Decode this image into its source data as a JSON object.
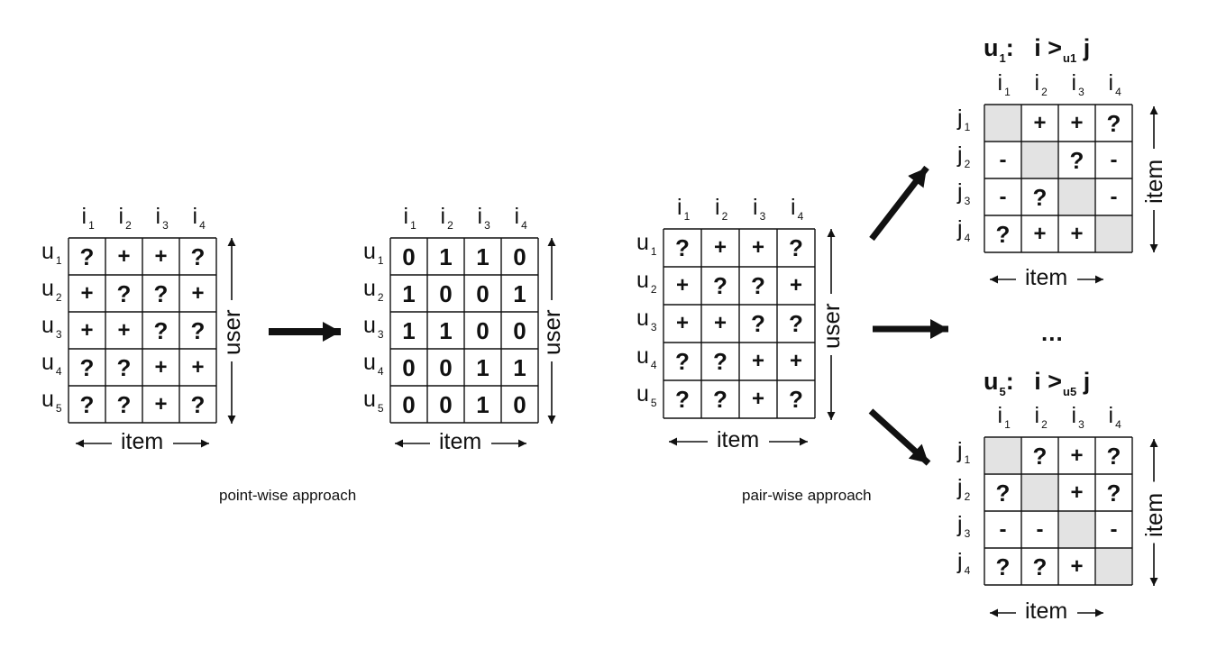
{
  "labels": {
    "item_axis": "item",
    "user_axis": "user",
    "point_wise": "point-wise approach",
    "pair_wise": "pair-wise approach",
    "ellipsis": "...",
    "row_prefix_user": "u",
    "col_prefix_item": "i",
    "row_prefix_item": "j",
    "rel_u1": {
      "user": "u",
      "user_sub": "1",
      "i": "i",
      "gt": ">",
      "gt_sub": "u1",
      "j": "j"
    },
    "rel_u5": {
      "user": "u",
      "user_sub": "5",
      "i": "i",
      "gt": ">",
      "gt_sub": "u5",
      "j": "j"
    }
  },
  "colors": {
    "shaded_cell": "#e3e3e3",
    "line": "#111111"
  },
  "matrices": {
    "user_item_observed": {
      "cols": [
        "1",
        "2",
        "3",
        "4"
      ],
      "rows": [
        "1",
        "2",
        "3",
        "4",
        "5"
      ],
      "cells": [
        [
          "?",
          "+",
          "+",
          "?"
        ],
        [
          "+",
          "?",
          "?",
          "+"
        ],
        [
          "+",
          "+",
          "?",
          "?"
        ],
        [
          "?",
          "?",
          "+",
          "+"
        ],
        [
          "?",
          "?",
          "+",
          "?"
        ]
      ]
    },
    "user_item_binary": {
      "cols": [
        "1",
        "2",
        "3",
        "4"
      ],
      "rows": [
        "1",
        "2",
        "3",
        "4",
        "5"
      ],
      "cells": [
        [
          "0",
          "1",
          "1",
          "0"
        ],
        [
          "1",
          "0",
          "0",
          "1"
        ],
        [
          "1",
          "1",
          "0",
          "0"
        ],
        [
          "0",
          "0",
          "1",
          "1"
        ],
        [
          "0",
          "0",
          "1",
          "0"
        ]
      ]
    },
    "user_item_pairwise_source": {
      "cols": [
        "1",
        "2",
        "3",
        "4"
      ],
      "rows": [
        "1",
        "2",
        "3",
        "4",
        "5"
      ],
      "cells": [
        [
          "?",
          "+",
          "+",
          "?"
        ],
        [
          "+",
          "?",
          "?",
          "+"
        ],
        [
          "+",
          "+",
          "?",
          "?"
        ],
        [
          "?",
          "?",
          "+",
          "+"
        ],
        [
          "?",
          "?",
          "+",
          "?"
        ]
      ]
    },
    "pairwise_u1": {
      "cols": [
        "1",
        "2",
        "3",
        "4"
      ],
      "rows": [
        "1",
        "2",
        "3",
        "4"
      ],
      "cells": [
        [
          "",
          "+",
          "+",
          "?"
        ],
        [
          "-",
          "",
          "?",
          "-"
        ],
        [
          "-",
          "?",
          "",
          "-"
        ],
        [
          "?",
          "+",
          "+",
          ""
        ]
      ],
      "shaded_diagonal": true
    },
    "pairwise_u5": {
      "cols": [
        "1",
        "2",
        "3",
        "4"
      ],
      "rows": [
        "1",
        "2",
        "3",
        "4"
      ],
      "cells": [
        [
          "",
          "?",
          "+",
          "?"
        ],
        [
          "?",
          "",
          "+",
          "?"
        ],
        [
          "-",
          "-",
          "",
          "-"
        ],
        [
          "?",
          "?",
          "+",
          ""
        ]
      ],
      "shaded_diagonal": true
    }
  }
}
